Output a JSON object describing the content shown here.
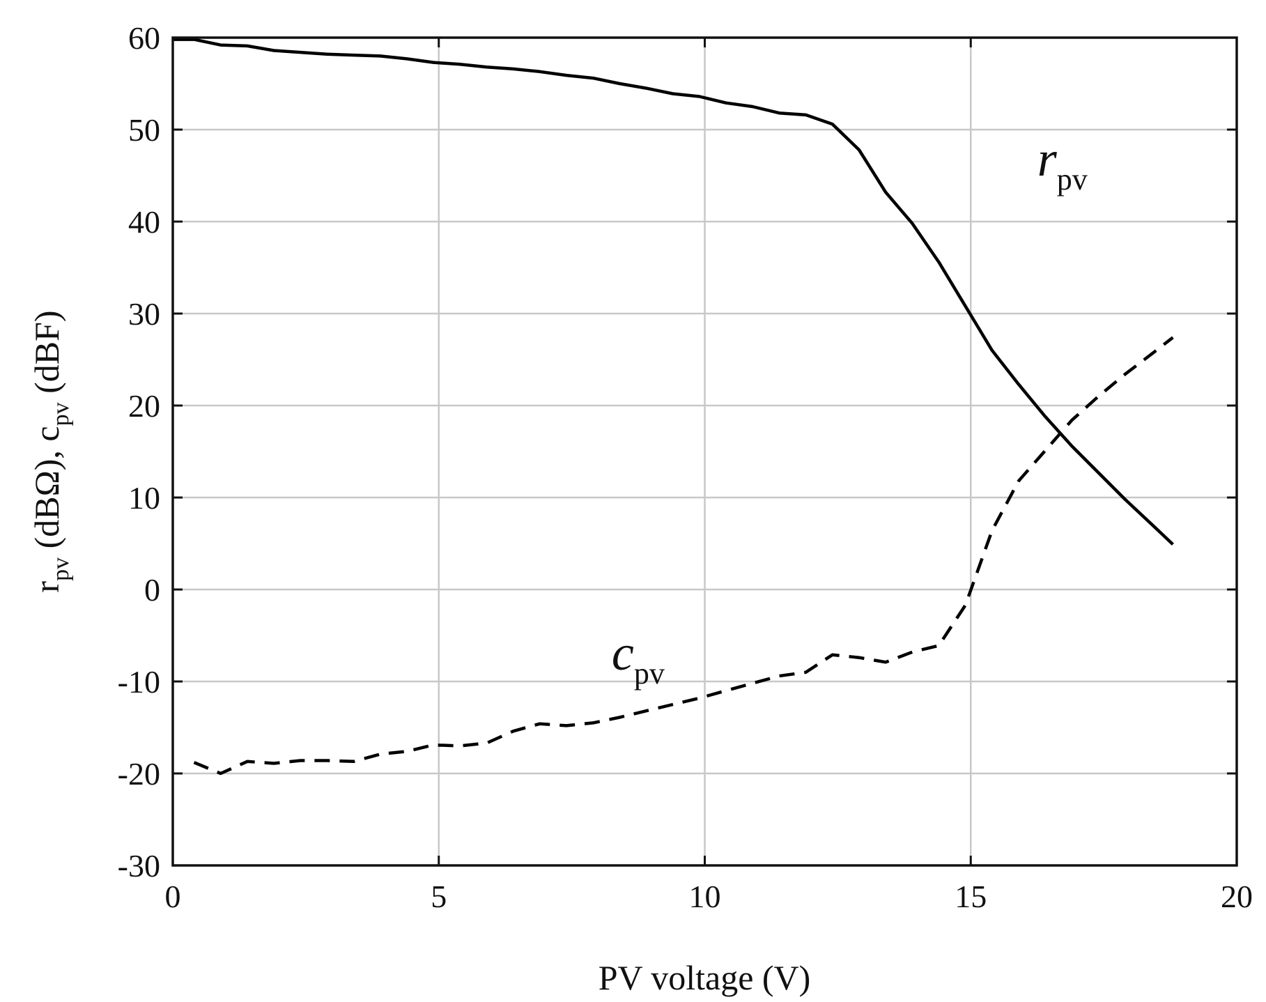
{
  "chart_data": {
    "type": "line",
    "title": "",
    "xlabel": "PV voltage (V)",
    "ylabel": {
      "parts": [
        "r",
        "pv",
        " (dBΩ), c",
        "pv",
        " (dBF)"
      ]
    },
    "xlim": [
      0,
      20
    ],
    "ylim": [
      -30,
      60
    ],
    "xticks": [
      0,
      5,
      10,
      15,
      20
    ],
    "yticks": [
      -30,
      -20,
      -10,
      0,
      10,
      20,
      30,
      40,
      50,
      60
    ],
    "grid": true,
    "series": [
      {
        "name": "r_pv",
        "label_main": "r",
        "label_sub": "pv",
        "style": "solid",
        "color": "#000000",
        "x": [
          0,
          0.4,
          0.9,
          1.4,
          1.9,
          2.4,
          2.9,
          3.4,
          3.9,
          4.4,
          4.9,
          5.4,
          5.9,
          6.4,
          6.9,
          7.4,
          7.9,
          8.4,
          8.9,
          9.4,
          9.9,
          10.4,
          10.9,
          11.4,
          11.9,
          12.4,
          12.9,
          13.4,
          13.9,
          14.4,
          14.9,
          15.4,
          15.9,
          16.4,
          16.9,
          17.4,
          17.9,
          18.4,
          18.8
        ],
        "values": [
          59.8,
          59.8,
          59.2,
          59.1,
          58.6,
          58.4,
          58.2,
          58.1,
          58.0,
          57.7,
          57.3,
          57.1,
          56.8,
          56.6,
          56.3,
          55.9,
          55.6,
          55.0,
          54.5,
          53.9,
          53.6,
          52.9,
          52.5,
          51.8,
          51.6,
          50.6,
          47.8,
          43.2,
          39.8,
          35.6,
          30.8,
          26.0,
          22.3,
          18.8,
          15.6,
          12.7,
          9.8,
          7.1,
          4.9
        ]
      },
      {
        "name": "c_pv",
        "label_main": "c",
        "label_sub": "pv",
        "style": "dashed",
        "color": "#000000",
        "x": [
          0.4,
          0.9,
          1.4,
          1.9,
          2.4,
          2.9,
          3.4,
          3.9,
          4.4,
          4.9,
          5.4,
          5.9,
          6.4,
          6.9,
          7.4,
          7.9,
          8.4,
          8.9,
          9.4,
          9.9,
          10.4,
          10.9,
          11.4,
          11.9,
          12.4,
          12.9,
          13.4,
          13.9,
          14.4,
          14.9,
          15.4,
          15.9,
          16.4,
          16.9,
          17.4,
          17.9,
          18.4,
          18.8
        ],
        "values": [
          -18.8,
          -20.0,
          -18.7,
          -18.9,
          -18.6,
          -18.6,
          -18.7,
          -17.9,
          -17.6,
          -16.9,
          -17.0,
          -16.7,
          -15.4,
          -14.6,
          -14.8,
          -14.5,
          -13.9,
          -13.2,
          -12.5,
          -11.8,
          -11.0,
          -10.2,
          -9.4,
          -9.0,
          -7.1,
          -7.4,
          -7.9,
          -6.8,
          -6.1,
          -1.7,
          6.4,
          11.8,
          15.1,
          18.4,
          21.0,
          23.4,
          25.6,
          27.4
        ]
      }
    ],
    "annotations": [
      {
        "series": "r_pv",
        "x": 16.25,
        "y": 45.0
      },
      {
        "series": "c_pv",
        "x": 8.25,
        "y": -8.7
      }
    ]
  }
}
